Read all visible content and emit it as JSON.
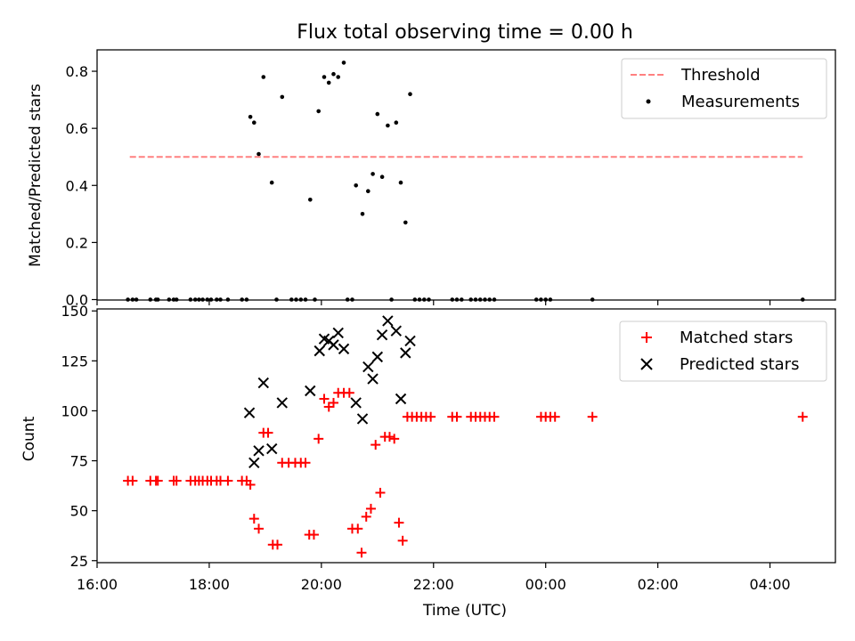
{
  "figure": {
    "title": "Flux total observing time = 0.00 h",
    "xlabel": "Time (UTC)"
  },
  "chart_data": [
    {
      "type": "scatter",
      "ylabel": "Matched/Predicted stars",
      "xlim": [
        "16:00",
        "05:10"
      ],
      "ylim": [
        0,
        0.875
      ],
      "yticks": [
        0.0,
        0.2,
        0.4,
        0.6,
        0.8
      ],
      "ytick_labels": [
        "0.0",
        "0.2",
        "0.4",
        "0.6",
        "0.8"
      ],
      "grid": false,
      "legend_position": "top-right",
      "threshold": {
        "name": "Threshold",
        "value": 0.5,
        "x_range": [
          "16:35",
          "04:35"
        ],
        "color": "#ff8080",
        "style": "dashed"
      },
      "series": [
        {
          "name": "Measurements",
          "marker": "dot",
          "color": "#000000",
          "points": [
            [
              "16:33",
              0
            ],
            [
              "16:38",
              0
            ],
            [
              "16:42",
              0
            ],
            [
              "16:57",
              0
            ],
            [
              "17:03",
              0
            ],
            [
              "17:05",
              0
            ],
            [
              "17:17",
              0
            ],
            [
              "17:22",
              0
            ],
            [
              "17:25",
              0
            ],
            [
              "17:40",
              0
            ],
            [
              "17:45",
              0
            ],
            [
              "17:49",
              0
            ],
            [
              "17:53",
              0
            ],
            [
              "17:58",
              0
            ],
            [
              "18:02",
              0
            ],
            [
              "18:08",
              0
            ],
            [
              "18:12",
              0
            ],
            [
              "18:20",
              0
            ],
            [
              "18:35",
              0
            ],
            [
              "18:40",
              0
            ],
            [
              "18:44",
              0.64
            ],
            [
              "18:48",
              0.62
            ],
            [
              "18:53",
              0.51
            ],
            [
              "18:58",
              0.78
            ],
            [
              "19:07",
              0.41
            ],
            [
              "19:12",
              0
            ],
            [
              "19:18",
              0.71
            ],
            [
              "19:28",
              0
            ],
            [
              "19:33",
              0
            ],
            [
              "19:38",
              0
            ],
            [
              "19:43",
              0
            ],
            [
              "19:48",
              0.35
            ],
            [
              "19:53",
              0
            ],
            [
              "19:57",
              0.66
            ],
            [
              "20:03",
              0.78
            ],
            [
              "20:08",
              0.76
            ],
            [
              "20:13",
              0.79
            ],
            [
              "20:18",
              0.78
            ],
            [
              "20:24",
              0.83
            ],
            [
              "20:28",
              0
            ],
            [
              "20:33",
              0
            ],
            [
              "20:37",
              0.4
            ],
            [
              "20:44",
              0.3
            ],
            [
              "20:50",
              0.38
            ],
            [
              "20:55",
              0.44
            ],
            [
              "21:00",
              0.65
            ],
            [
              "21:05",
              0.43
            ],
            [
              "21:11",
              0.61
            ],
            [
              "21:15",
              0
            ],
            [
              "21:20",
              0.62
            ],
            [
              "21:25",
              0.41
            ],
            [
              "21:30",
              0.27
            ],
            [
              "21:35",
              0.72
            ],
            [
              "21:40",
              0
            ],
            [
              "21:45",
              0
            ],
            [
              "21:50",
              0
            ],
            [
              "21:55",
              0
            ],
            [
              "22:20",
              0
            ],
            [
              "22:25",
              0
            ],
            [
              "22:30",
              0
            ],
            [
              "22:40",
              0
            ],
            [
              "22:45",
              0
            ],
            [
              "22:50",
              0
            ],
            [
              "22:55",
              0
            ],
            [
              "23:00",
              0
            ],
            [
              "23:05",
              0
            ],
            [
              "23:50",
              0
            ],
            [
              "23:55",
              0
            ],
            [
              "00:00",
              0
            ],
            [
              "00:05",
              0
            ],
            [
              "00:50",
              0
            ],
            [
              "04:35",
              0
            ]
          ]
        }
      ]
    },
    {
      "type": "scatter",
      "ylabel": "Count",
      "xlim": [
        "16:00",
        "05:10"
      ],
      "ylim": [
        24,
        151
      ],
      "yticks": [
        25,
        50,
        75,
        100,
        125,
        150
      ],
      "ytick_labels": [
        "25",
        "50",
        "75",
        "100",
        "125",
        "150"
      ],
      "xticks": [
        "16:00",
        "18:00",
        "20:00",
        "22:00",
        "00:00",
        "02:00",
        "04:00"
      ],
      "grid": false,
      "legend_position": "top-right",
      "series": [
        {
          "name": "Matched stars",
          "marker": "plus",
          "color": "#ff0000",
          "points": [
            [
              "16:33",
              65
            ],
            [
              "16:38",
              65
            ],
            [
              "16:57",
              65
            ],
            [
              "17:03",
              65
            ],
            [
              "17:05",
              65
            ],
            [
              "17:22",
              65
            ],
            [
              "17:25",
              65
            ],
            [
              "17:40",
              65
            ],
            [
              "17:45",
              65
            ],
            [
              "17:49",
              65
            ],
            [
              "17:53",
              65
            ],
            [
              "17:58",
              65
            ],
            [
              "18:02",
              65
            ],
            [
              "18:08",
              65
            ],
            [
              "18:12",
              65
            ],
            [
              "18:20",
              65
            ],
            [
              "18:35",
              65
            ],
            [
              "18:40",
              65
            ],
            [
              "18:44",
              63
            ],
            [
              "18:48",
              46
            ],
            [
              "18:53",
              41
            ],
            [
              "18:58",
              89
            ],
            [
              "19:03",
              89
            ],
            [
              "19:08",
              33
            ],
            [
              "19:13",
              33
            ],
            [
              "19:18",
              74
            ],
            [
              "19:25",
              74
            ],
            [
              "19:32",
              74
            ],
            [
              "19:38",
              74
            ],
            [
              "19:43",
              74
            ],
            [
              "19:47",
              38
            ],
            [
              "19:52",
              38
            ],
            [
              "19:57",
              86
            ],
            [
              "20:03",
              106
            ],
            [
              "20:08",
              102
            ],
            [
              "20:13",
              104
            ],
            [
              "20:18",
              109
            ],
            [
              "20:24",
              109
            ],
            [
              "20:30",
              109
            ],
            [
              "20:33",
              41
            ],
            [
              "20:39",
              41
            ],
            [
              "20:43",
              29
            ],
            [
              "20:48",
              47
            ],
            [
              "20:53",
              51
            ],
            [
              "20:58",
              83
            ],
            [
              "21:03",
              59
            ],
            [
              "21:08",
              87
            ],
            [
              "21:13",
              87
            ],
            [
              "21:18",
              86
            ],
            [
              "21:23",
              44
            ],
            [
              "21:27",
              35
            ],
            [
              "21:32",
              97
            ],
            [
              "21:37",
              97
            ],
            [
              "21:42",
              97
            ],
            [
              "21:47",
              97
            ],
            [
              "21:52",
              97
            ],
            [
              "21:57",
              97
            ],
            [
              "22:20",
              97
            ],
            [
              "22:25",
              97
            ],
            [
              "22:40",
              97
            ],
            [
              "22:45",
              97
            ],
            [
              "22:50",
              97
            ],
            [
              "22:55",
              97
            ],
            [
              "23:00",
              97
            ],
            [
              "23:05",
              97
            ],
            [
              "23:55",
              97
            ],
            [
              "00:00",
              97
            ],
            [
              "00:05",
              97
            ],
            [
              "00:10",
              97
            ],
            [
              "00:50",
              97
            ],
            [
              "04:35",
              97
            ]
          ]
        },
        {
          "name": "Predicted stars",
          "marker": "x",
          "color": "#000000",
          "points": [
            [
              "18:43",
              99
            ],
            [
              "18:48",
              74
            ],
            [
              "18:53",
              80
            ],
            [
              "18:58",
              114
            ],
            [
              "19:07",
              81
            ],
            [
              "19:18",
              104
            ],
            [
              "19:48",
              110
            ],
            [
              "19:58",
              130
            ],
            [
              "20:03",
              136
            ],
            [
              "20:08",
              135
            ],
            [
              "20:13",
              133
            ],
            [
              "20:18",
              139
            ],
            [
              "20:24",
              131
            ],
            [
              "20:37",
              104
            ],
            [
              "20:44",
              96
            ],
            [
              "20:50",
              122
            ],
            [
              "20:55",
              116
            ],
            [
              "21:00",
              127
            ],
            [
              "21:05",
              138
            ],
            [
              "21:11",
              145
            ],
            [
              "21:20",
              140
            ],
            [
              "21:25",
              106
            ],
            [
              "21:30",
              129
            ],
            [
              "21:35",
              135
            ]
          ]
        }
      ]
    }
  ]
}
